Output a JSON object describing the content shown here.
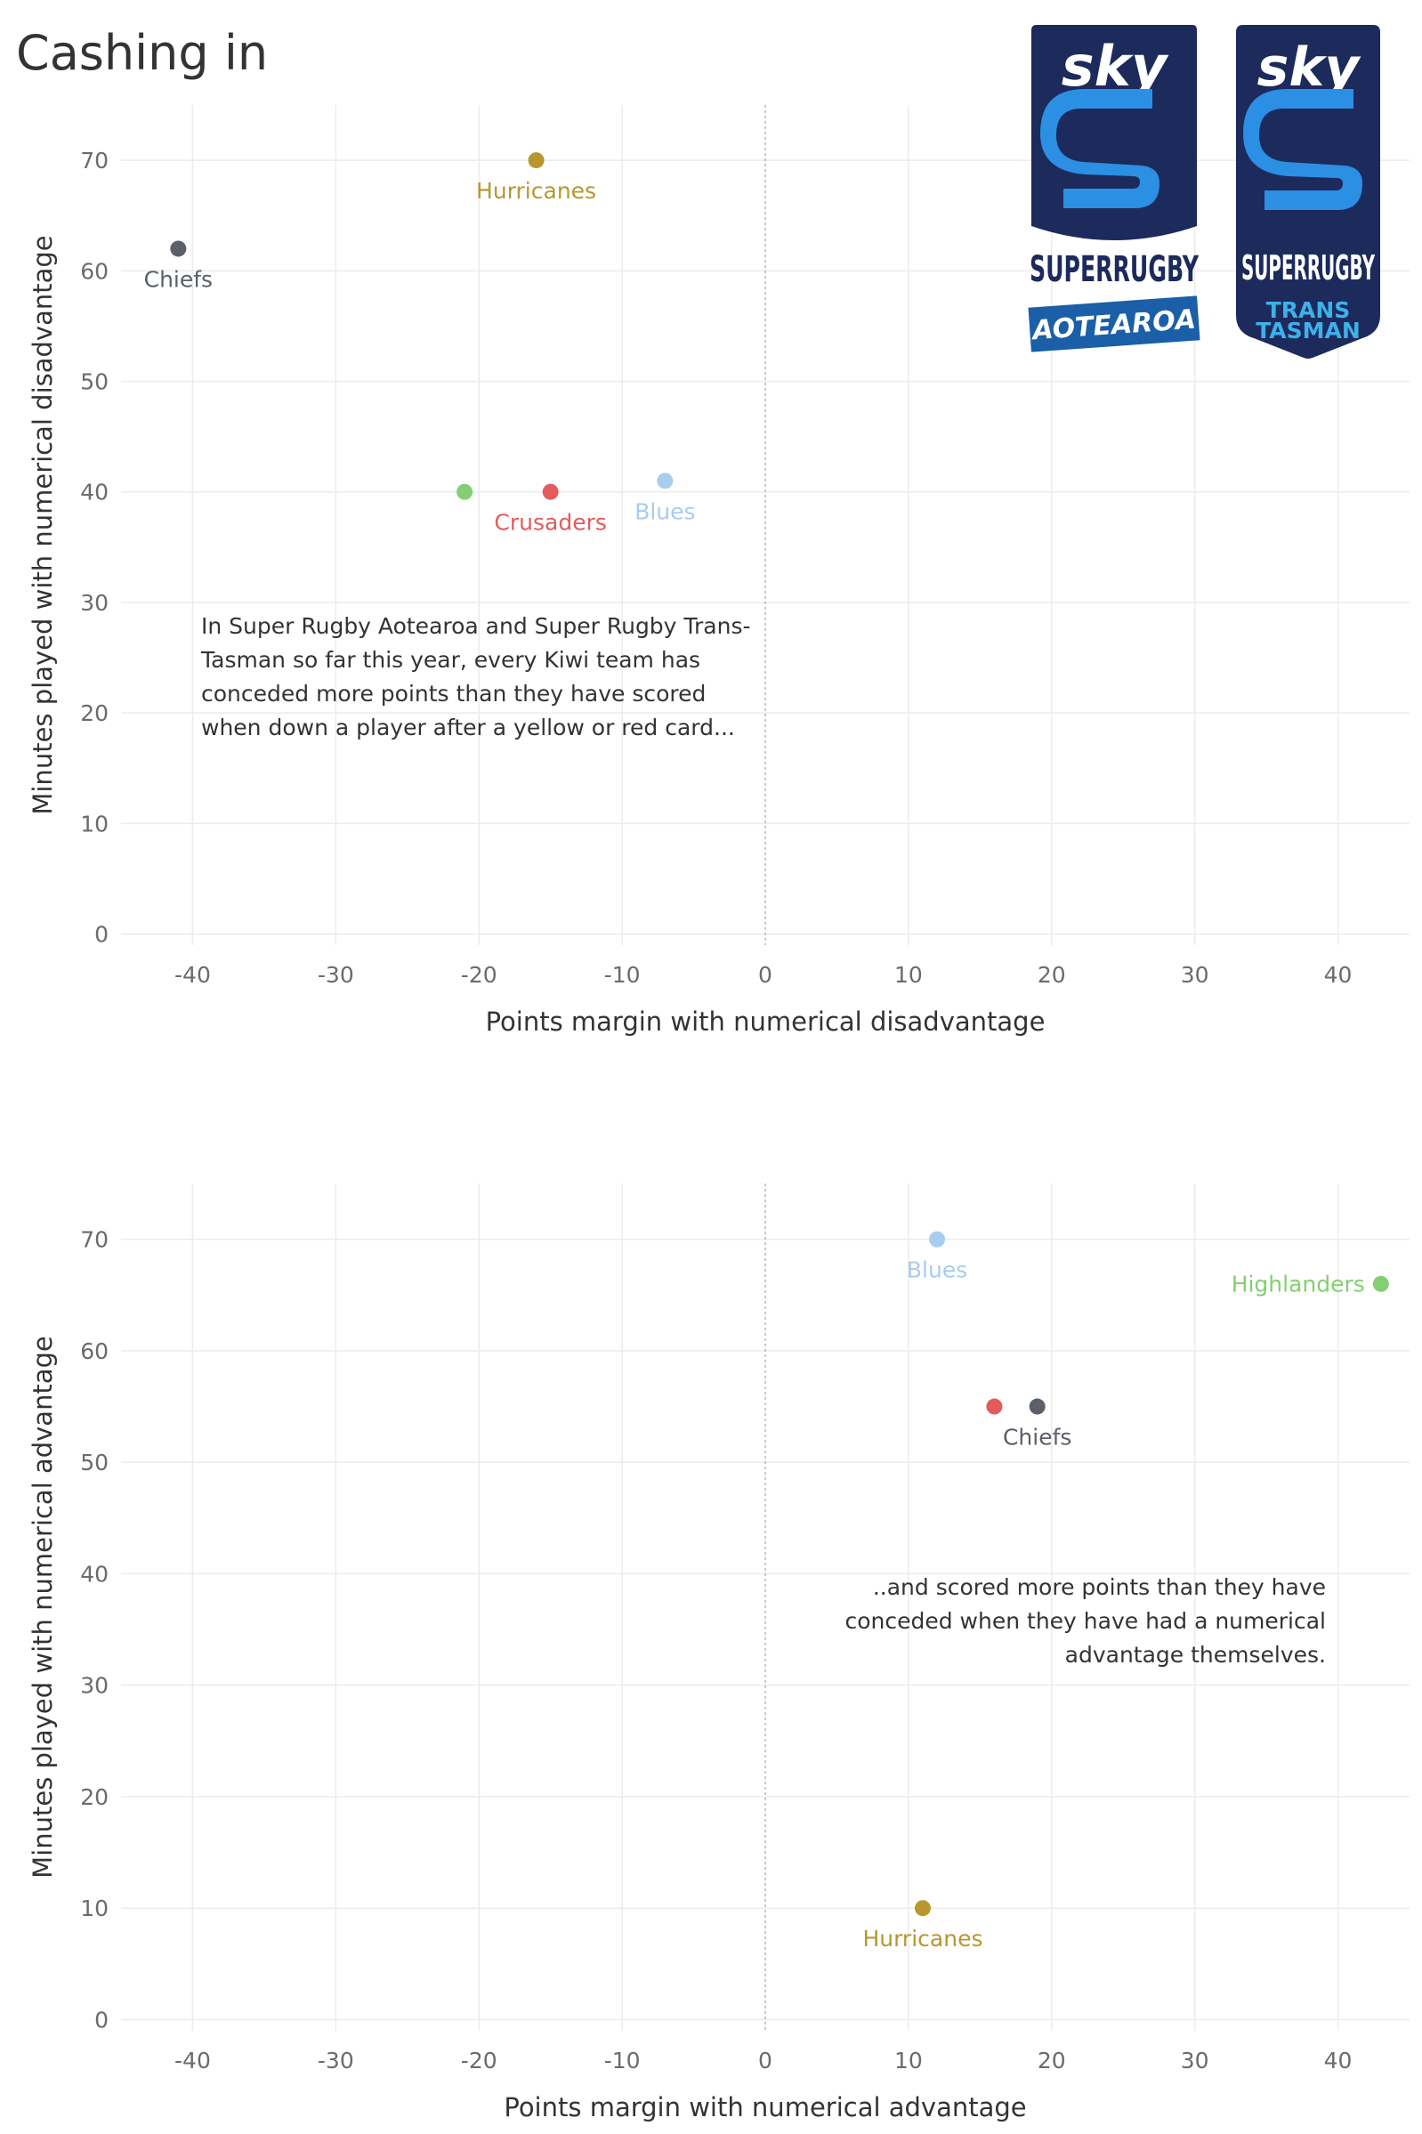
{
  "title": "Cashing in",
  "logos": [
    {
      "name": "super-rugby-aotearoa-logo",
      "wordmark": "sky",
      "brand": "SUPERRUGBY",
      "tag": "AOTEAROA"
    },
    {
      "name": "super-rugby-trans-tasman-logo",
      "wordmark": "sky",
      "brand": "SUPERRUGBY",
      "tag_line1": "TRANS",
      "tag_line2": "TASMAN"
    }
  ],
  "chart_data": [
    {
      "type": "scatter",
      "xlabel": "Points margin with numerical disadvantage",
      "ylabel": "Minutes played with numerical disadvantage",
      "xlim": [
        -45,
        45
      ],
      "ylim": [
        -1,
        75
      ],
      "x_ticks": [
        -40,
        -30,
        -20,
        -10,
        0,
        10,
        20,
        30,
        40
      ],
      "y_ticks": [
        0,
        10,
        20,
        30,
        40,
        50,
        60,
        70
      ],
      "grid": true,
      "zero_line": "x = 0 (dotted)",
      "points": [
        {
          "team": "Hurricanes",
          "x": -16,
          "y": 70,
          "color": "#b8972e",
          "label": "Hurricanes",
          "label_pos": "below"
        },
        {
          "team": "Chiefs",
          "x": -41,
          "y": 62,
          "color": "#5b6069",
          "label": "Chiefs",
          "label_pos": "below"
        },
        {
          "team": "Highlanders",
          "x": -21,
          "y": 40,
          "color": "#84cf73",
          "label": "",
          "label_pos": "none"
        },
        {
          "team": "Crusaders",
          "x": -15,
          "y": 40,
          "color": "#e35b5b",
          "label": "Crusaders",
          "label_pos": "below"
        },
        {
          "team": "Blues",
          "x": -7,
          "y": 41,
          "color": "#a7cdef",
          "label": "Blues",
          "label_pos": "below"
        }
      ],
      "annotation": "In Super Rugby Aotearoa and Super Rugby Trans-Tasman so far this year, every Kiwi team has conceded more points than they have scored when down a player after a yellow or red card..."
    },
    {
      "type": "scatter",
      "xlabel": "Points margin with numerical advantage",
      "ylabel": "Minutes played with numerical advantage",
      "xlim": [
        -45,
        45
      ],
      "ylim": [
        -1,
        75
      ],
      "x_ticks": [
        -40,
        -30,
        -20,
        -10,
        0,
        10,
        20,
        30,
        40
      ],
      "y_ticks": [
        0,
        10,
        20,
        30,
        40,
        50,
        60,
        70
      ],
      "grid": true,
      "zero_line": "x = 0 (dotted)",
      "points": [
        {
          "team": "Blues",
          "x": 12,
          "y": 70,
          "color": "#a7cdef",
          "label": "Blues",
          "label_pos": "below"
        },
        {
          "team": "Highlanders",
          "x": 43,
          "y": 66,
          "color": "#84cf73",
          "label": "Highlanders",
          "label_pos": "left"
        },
        {
          "team": "Crusaders",
          "x": 16,
          "y": 55,
          "color": "#e35b5b",
          "label": "",
          "label_pos": "none"
        },
        {
          "team": "Chiefs",
          "x": 19,
          "y": 55,
          "color": "#5b6069",
          "label": "Chiefs",
          "label_pos": "below"
        },
        {
          "team": "Hurricanes",
          "x": 11,
          "y": 10,
          "color": "#b8972e",
          "label": "Hurricanes",
          "label_pos": "below"
        }
      ],
      "annotation": "..and scored more points than they have conceded when they have had a numerical advantage themselves."
    }
  ]
}
